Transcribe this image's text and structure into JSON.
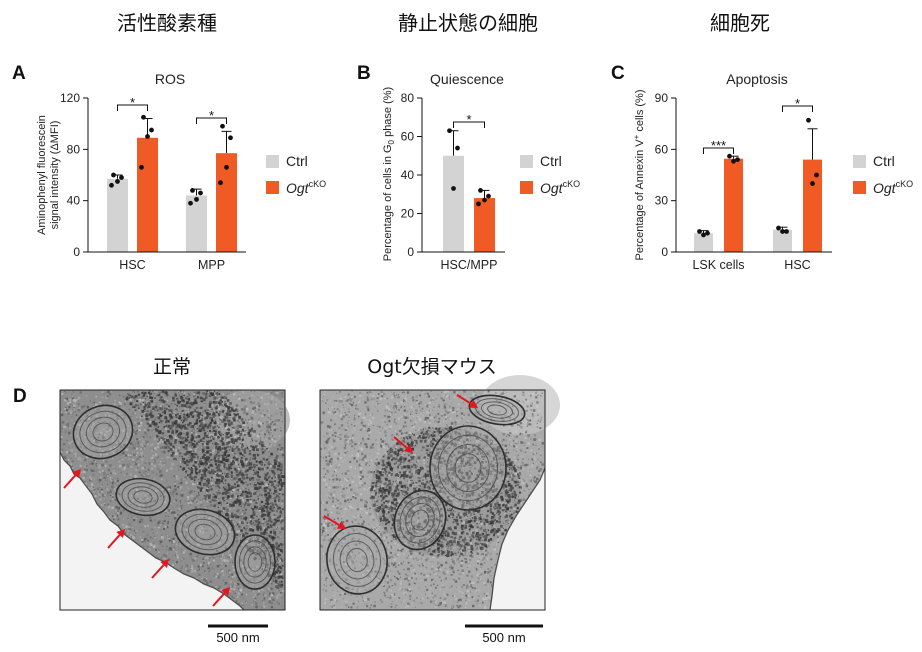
{
  "headings": [
    "活性酸素種",
    "静止状態の細胞",
    "細胞死"
  ],
  "colors": {
    "arrow": "#e3161f"
  },
  "chart_data": [
    {
      "panel": "A",
      "type": "bar",
      "title": "ROS",
      "ylabel": [
        "Aminophenyl fluorescein",
        "signal intensity (ΔMFI)"
      ],
      "categories": [
        "HSC",
        "MPP"
      ],
      "ylim": [
        0,
        120
      ],
      "yticks": [
        0,
        40,
        80,
        120
      ],
      "legend": "right",
      "series": [
        {
          "name": "Ctrl",
          "color": "#d3d3d3",
          "values": [
            57,
            44
          ],
          "error_upper": [
            3,
            5
          ],
          "points": [
            [
              60,
              58,
              55,
              52
            ],
            [
              48,
              46,
              41,
              38
            ]
          ]
        },
        {
          "name": "Ogt",
          "name_sup": "cKO",
          "color": "#f05a24",
          "values": [
            89,
            77
          ],
          "error_upper": [
            15,
            17
          ],
          "points": [
            [
              105,
              95,
              90,
              66
            ],
            [
              98,
              89,
              66,
              54
            ]
          ]
        }
      ],
      "significance": [
        "*",
        "*"
      ]
    },
    {
      "panel": "B",
      "type": "bar",
      "title": "Quiescence",
      "ylabel": [
        "Percentage of cells in G",
        "0",
        " phase (%)"
      ],
      "categories": [
        "HSC/MPP"
      ],
      "ylim": [
        0,
        80
      ],
      "yticks": [
        0,
        20,
        40,
        60,
        80
      ],
      "legend": "right",
      "series": [
        {
          "name": "Ctrl",
          "color": "#d3d3d3",
          "values": [
            50
          ],
          "error_upper": [
            13
          ],
          "points": [
            [
              63,
              54,
              33
            ]
          ]
        },
        {
          "name": "Ogt",
          "name_sup": "cKO",
          "color": "#f05a24",
          "values": [
            28
          ],
          "error_upper": [
            4
          ],
          "points": [
            [
              32,
              29,
              27,
              25
            ]
          ]
        }
      ],
      "significance": [
        "*"
      ]
    },
    {
      "panel": "C",
      "type": "bar",
      "title": "Apoptosis",
      "ylabel": [
        "Percentage of Annexin V",
        "+",
        " cells (%)"
      ],
      "categories": [
        "LSK cells",
        "HSC"
      ],
      "ylim": [
        0,
        90
      ],
      "yticks": [
        0,
        30,
        60,
        90
      ],
      "legend": "right",
      "series": [
        {
          "name": "Ctrl",
          "color": "#d3d3d3",
          "values": [
            11,
            13
          ],
          "error_upper": [
            1.5,
            1.5
          ],
          "points": [
            [
              12,
              11,
              10
            ],
            [
              14,
              12,
              12
            ]
          ]
        },
        {
          "name": "Ogt",
          "name_sup": "cKO",
          "color": "#f05a24",
          "values": [
            54.5,
            54
          ],
          "error_upper": [
            1.5,
            18
          ],
          "points": [
            [
              56,
              54,
              53
            ],
            [
              77,
              45,
              40
            ]
          ]
        }
      ],
      "significance": [
        "***",
        "*"
      ]
    }
  ],
  "panel_d": {
    "panel": "D",
    "images": [
      {
        "caption": "正常",
        "scale_bar_label": "500 nm"
      },
      {
        "caption": "Ogt欠損マウス",
        "scale_bar_label": "500 nm"
      }
    ]
  }
}
